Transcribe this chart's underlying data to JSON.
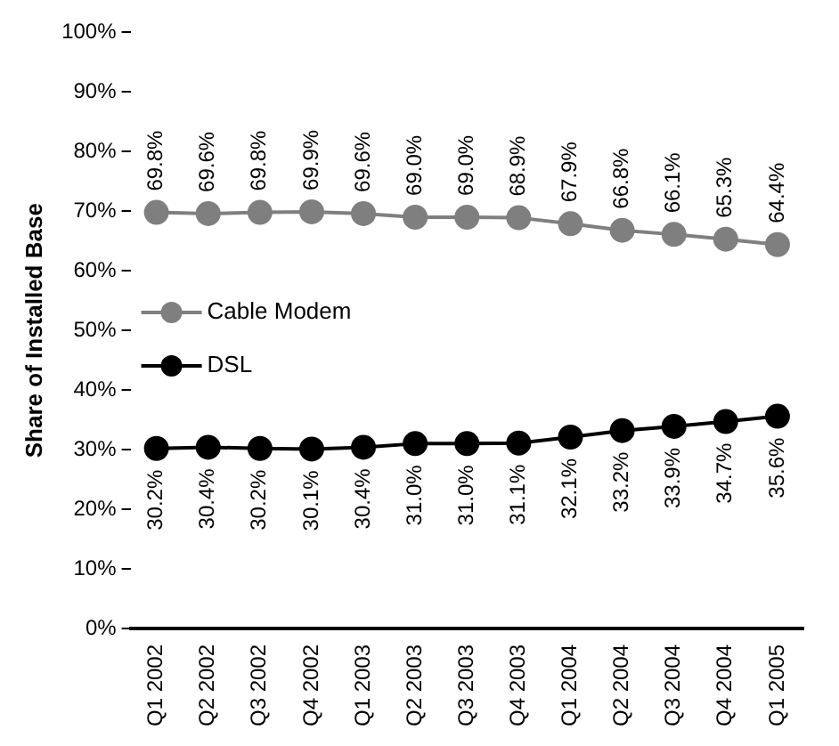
{
  "chart_data": {
    "type": "line",
    "ylabel": "Share of Installed Base",
    "categories": [
      "Q1 2002",
      "Q2 2002",
      "Q3 2002",
      "Q4 2002",
      "Q1 2003",
      "Q2 2003",
      "Q3 2003",
      "Q4 2003",
      "Q1 2004",
      "Q2 2004",
      "Q3 2004",
      "Q4 2004",
      "Q1 2005"
    ],
    "series": [
      {
        "name": "Cable Modem",
        "color": "#7f7f7f",
        "values": [
          69.8,
          69.6,
          69.8,
          69.9,
          69.6,
          69.0,
          69.0,
          68.9,
          67.9,
          66.8,
          66.1,
          65.3,
          64.4
        ],
        "value_labels": [
          "69.8%",
          "69.6%",
          "69.8%",
          "69.9%",
          "69.6%",
          "69.0%",
          "69.0%",
          "68.9%",
          "67.9%",
          "66.8%",
          "66.1%",
          "65.3%",
          "64.4%"
        ]
      },
      {
        "name": "DSL",
        "color": "#000000",
        "values": [
          30.2,
          30.4,
          30.2,
          30.1,
          30.4,
          31.0,
          31.0,
          31.1,
          32.1,
          33.2,
          33.9,
          34.7,
          35.6
        ],
        "value_labels": [
          "30.2%",
          "30.4%",
          "30.2%",
          "30.1%",
          "30.4%",
          "31.0%",
          "31.0%",
          "31.1%",
          "32.1%",
          "33.2%",
          "33.9%",
          "34.7%",
          "35.6%"
        ]
      }
    ],
    "ylim": [
      0,
      100
    ],
    "yticks": [
      {
        "value": 0,
        "label": "0%"
      },
      {
        "value": 10,
        "label": "10%"
      },
      {
        "value": 20,
        "label": "20%"
      },
      {
        "value": 30,
        "label": "30%"
      },
      {
        "value": 40,
        "label": "40%"
      },
      {
        "value": 50,
        "label": "50%"
      },
      {
        "value": 60,
        "label": "60%"
      },
      {
        "value": 70,
        "label": "70%"
      },
      {
        "value": 80,
        "label": "80%"
      },
      {
        "value": 90,
        "label": "90%"
      },
      {
        "value": 100,
        "label": "100%"
      }
    ],
    "grid": false,
    "legend": "left",
    "marker": "circle",
    "line_style": "solid"
  }
}
